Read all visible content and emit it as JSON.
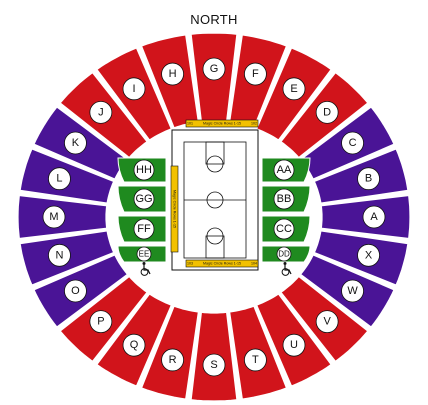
{
  "title": "NORTH",
  "colors": {
    "lower_bowl": "#d1141b",
    "side_bowl": "#4a1496",
    "floor_sections": "#1f8a1f",
    "banner": "#f2c100",
    "outline": "#111111"
  },
  "sections": {
    "top_arc": [
      "I",
      "H",
      "G",
      "F",
      "E"
    ],
    "upper_right": [
      "D",
      "C"
    ],
    "right_side": [
      "B",
      "A",
      "X"
    ],
    "lower_right": [
      "W",
      "V"
    ],
    "bottom_arc": [
      "U",
      "T",
      "S",
      "R",
      "Q"
    ],
    "lower_left": [
      "P",
      "O"
    ],
    "left_side": [
      "N",
      "M",
      "L"
    ],
    "upper_left": [
      "K",
      "J"
    ],
    "floor_left": [
      "HH",
      "GG",
      "FF",
      "EE"
    ],
    "floor_right": [
      "AA",
      "BB",
      "CC",
      "DD"
    ]
  },
  "banners": {
    "top": "Magic Circle Rows 1-15",
    "bottom": "Magic Circle Rows 1-15",
    "left": "Magic Circle Rows 1-15",
    "top_left_num": "101",
    "top_right_num": "102",
    "bottom_left_num": "103",
    "bottom_right_num": "104"
  },
  "accessibility_icons": [
    "wheelchair-left",
    "wheelchair-right"
  ]
}
